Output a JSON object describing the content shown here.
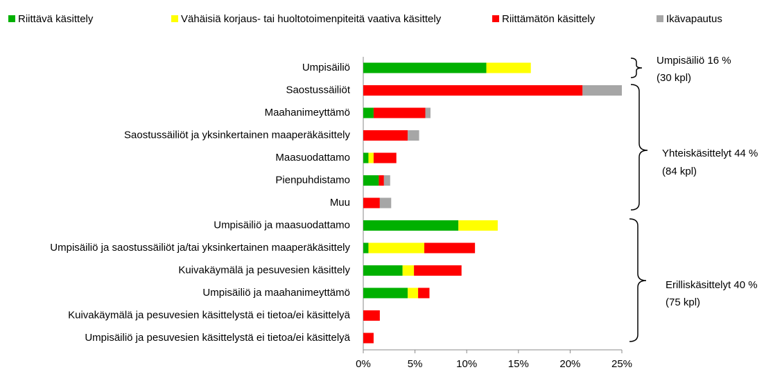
{
  "chart_data": {
    "type": "bar",
    "orientation": "horizontal",
    "stacked": true,
    "categories": [
      "Umpisäiliö",
      "Saostussäiliöt",
      "Maahanimeyttämö",
      "Saostussäiliöt ja yksinkertainen maaperäkäsittely",
      "Maasuodattamo",
      "Pienpuhdistamo",
      "Muu",
      "Umpisäiliö ja maasuodattamo",
      "Umpisäiliö ja saostussäiliöt ja/tai yksinkertainen maaperäkäsittely",
      "Kuivakäymälä ja pesuvesien käsittely",
      "Umpisäiliö ja maahanimeyttämö",
      "Kuivakäymälä ja pesuvesien käsittelystä ei tietoa/ei käsittelyä",
      "Umpisäiliö ja pesuvesien käsittelystä ei tietoa/ei käsittelyä"
    ],
    "series": [
      {
        "name": "Riittävä käsittely",
        "color": "#00b000",
        "values": [
          11.9,
          0,
          1.0,
          0,
          0.5,
          1.5,
          0,
          9.2,
          0.5,
          3.8,
          4.3,
          0,
          0
        ]
      },
      {
        "name": "Vähäisiä korjaus- tai huoltotoimenpiteitä vaativa käsittely",
        "color": "#ffff00",
        "values": [
          4.3,
          0,
          0,
          0,
          0.5,
          0,
          0,
          3.8,
          5.4,
          1.1,
          1.0,
          0,
          0
        ]
      },
      {
        "name": "Riittämätön käsittely",
        "color": "#ff0000",
        "values": [
          0,
          21.2,
          5.0,
          4.3,
          2.2,
          0.5,
          1.6,
          0,
          4.9,
          4.6,
          1.1,
          1.6,
          1.0
        ]
      },
      {
        "name": "Ikävapautus",
        "color": "#a6a6a6",
        "values": [
          0,
          3.8,
          0.5,
          1.1,
          0,
          0.6,
          1.1,
          0,
          0,
          0,
          0,
          0,
          0
        ]
      }
    ],
    "xlim": [
      0,
      25
    ],
    "xticks": [
      {
        "value": 0,
        "label": "0%"
      },
      {
        "value": 5,
        "label": "5%"
      },
      {
        "value": 10,
        "label": "10%"
      },
      {
        "value": 15,
        "label": "15%"
      },
      {
        "value": 20,
        "label": "20%"
      },
      {
        "value": 25,
        "label": "25%"
      }
    ],
    "legend": "top",
    "annotations": [
      [
        "Umpisäiliö 16 %",
        "(30 kpl)"
      ],
      [
        "Yhteiskäsittelyt 44 %",
        "(84 kpl)"
      ],
      [
        "Erilliskäsittelyt 40 %",
        "(75 kpl)"
      ]
    ]
  }
}
